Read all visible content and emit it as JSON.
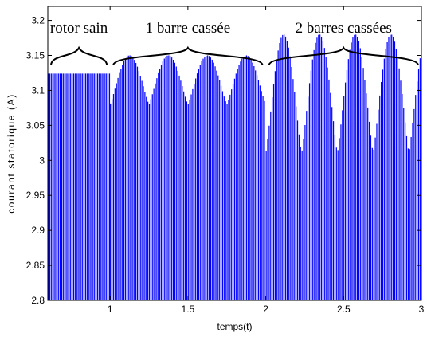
{
  "chart_data": {
    "type": "line",
    "title": "",
    "xlabel": "temps(t)",
    "ylabel": "courant statorique (A)",
    "xlim": [
      0.6,
      3.0
    ],
    "ylim": [
      2.8,
      3.22
    ],
    "x_ticks": [
      1,
      1.5,
      2,
      2.5,
      3
    ],
    "x_tick_labels": [
      "1",
      "1.5",
      "2",
      "2.5",
      "3"
    ],
    "y_ticks": [
      2.8,
      2.85,
      2.9,
      2.95,
      3.0,
      3.05,
      3.1,
      3.15,
      3.2
    ],
    "y_tick_labels": [
      "2.8",
      "2.85",
      "2.9",
      "2.95",
      "3",
      "3.05",
      "3.1",
      "3.15",
      "3.2"
    ],
    "grid": false,
    "line_color": "#0000ff",
    "series": [
      {
        "values_description": "current envelope",
        "segments": [
          {
            "x_start": 0.6,
            "x_end": 1.0,
            "peak_min": 3.124,
            "peak_max": 3.124,
            "trough": 2.8
          },
          {
            "x_start": 1.0,
            "x_end": 2.0,
            "peak_min": 3.08,
            "peak_max": 3.15,
            "trough": 2.8,
            "oscillation_period": 0.25
          },
          {
            "x_start": 2.0,
            "x_end": 3.0,
            "peak_min": 3.01,
            "peak_max": 3.18,
            "trough": 2.8,
            "oscillation_period": 0.23
          }
        ]
      }
    ],
    "annotations": [
      {
        "text": "rotor sain",
        "x_start": 0.6,
        "x_end": 1.0
      },
      {
        "text": "1 barre cassée",
        "x_start": 1.0,
        "x_end": 2.0
      },
      {
        "text": "2 barres cassées",
        "x_start": 2.0,
        "x_end": 3.0
      }
    ]
  }
}
